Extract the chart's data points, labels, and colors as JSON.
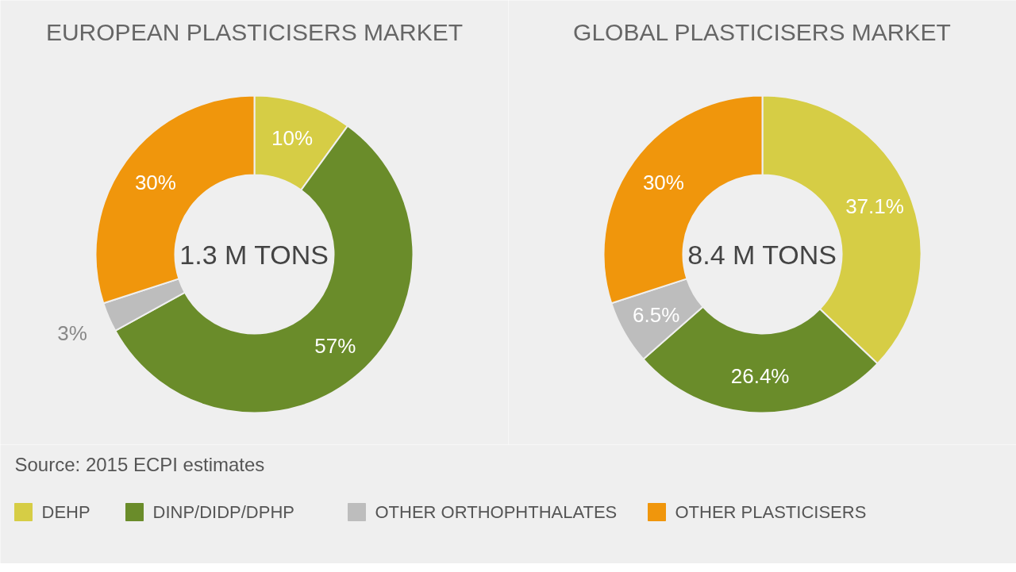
{
  "chart_data": [
    {
      "type": "donut",
      "title": "EUROPEAN PLASTICISERS MARKET",
      "categories": [
        "DEHP",
        "DINP/DIDP/DPHP",
        "OTHER ORTHOPHTHALATES",
        "OTHER PLASTICISERS"
      ],
      "values": [
        10,
        57,
        3,
        30
      ],
      "colors": [
        "#d6cd45",
        "#6a8c2a",
        "#bdbdbd",
        "#f0960c"
      ],
      "value_labels": [
        "10%",
        "57%",
        "3%",
        "30%"
      ],
      "annotations": [
        "1.3 M TONS",
        "Source: 2015 ECPI estimates"
      ],
      "legend": "bottom"
    },
    {
      "type": "donut",
      "title": "GLOBAL PLASTICISERS MARKET",
      "categories": [
        null,
        null,
        null,
        null
      ],
      "values": [
        37.1,
        26.4,
        6.5,
        30
      ],
      "colors": [
        "#d6cd45",
        "#6a8c2a",
        "#bdbdbd",
        "#f0960c"
      ],
      "value_labels": [
        "37.1%",
        "26.4%",
        "6.5%",
        "30%"
      ],
      "annotations": [
        "8.4 M TONS"
      ]
    }
  ]
}
